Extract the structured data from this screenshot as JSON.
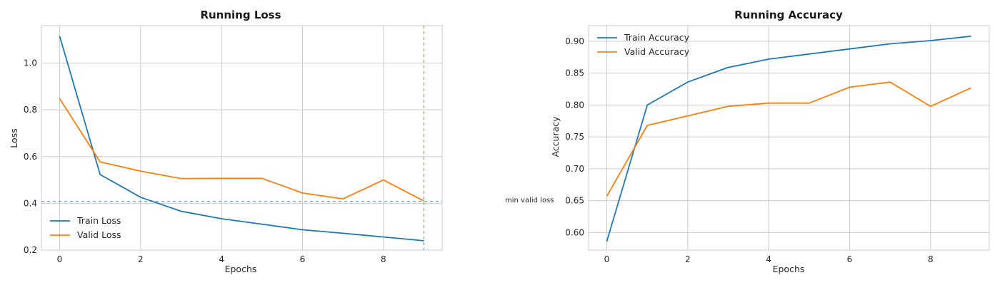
{
  "chart_data": [
    {
      "type": "line",
      "title": "Running Loss",
      "xlabel": "Epochs",
      "ylabel": "Loss",
      "x": [
        0,
        1,
        2,
        3,
        4,
        5,
        6,
        7,
        8,
        9
      ],
      "xlim": [
        -0.45,
        9.45
      ],
      "ylim": [
        0.2,
        1.16
      ],
      "xticks": [
        0,
        2,
        4,
        6,
        8
      ],
      "yticks": [
        0.2,
        0.4,
        0.6,
        0.8,
        1.0
      ],
      "yticklabels": [
        "0.2",
        "0.4",
        "0.6",
        "0.8",
        "1.0"
      ],
      "grid": true,
      "legend": "lower-left",
      "series": [
        {
          "name": "Train Loss",
          "color": "#1f77b4",
          "values": [
            1.115,
            0.523,
            0.426,
            0.366,
            0.334,
            0.311,
            0.287,
            0.272,
            0.256,
            0.24
          ]
        },
        {
          "name": "Valid Loss",
          "color": "#ff7f0e",
          "values": [
            0.848,
            0.577,
            0.538,
            0.506,
            0.507,
            0.507,
            0.444,
            0.419,
            0.5,
            0.41
          ]
        }
      ],
      "reference_lines": {
        "vline_x": 9,
        "hline_y": 0.408,
        "color": "#1f77b4",
        "style": "dashed"
      },
      "annotation": {
        "text": "min valid loss",
        "x": 9.45,
        "y": 0.408
      }
    },
    {
      "type": "line",
      "title": "Running Accuracy",
      "xlabel": "Epochs",
      "ylabel": "Accuracy",
      "x": [
        0,
        1,
        2,
        3,
        4,
        5,
        6,
        7,
        8,
        9
      ],
      "xlim": [
        -0.45,
        9.45
      ],
      "ylim": [
        0.5725,
        0.9245
      ],
      "xticks": [
        0,
        2,
        4,
        6,
        8
      ],
      "yticks": [
        0.6,
        0.65,
        0.7,
        0.75,
        0.8,
        0.85,
        0.9
      ],
      "yticklabels": [
        "0.60",
        "0.65",
        "0.70",
        "0.75",
        "0.80",
        "0.85",
        "0.90"
      ],
      "grid": true,
      "legend": "upper-left",
      "series": [
        {
          "name": "Train Accuracy",
          "color": "#1f77b4",
          "values": [
            0.586,
            0.8,
            0.836,
            0.859,
            0.872,
            0.88,
            0.888,
            0.896,
            0.901,
            0.908
          ]
        },
        {
          "name": "Valid Accuracy",
          "color": "#ff7f0e",
          "values": [
            0.657,
            0.768,
            0.783,
            0.798,
            0.803,
            0.803,
            0.828,
            0.836,
            0.798,
            0.827
          ]
        }
      ]
    }
  ]
}
